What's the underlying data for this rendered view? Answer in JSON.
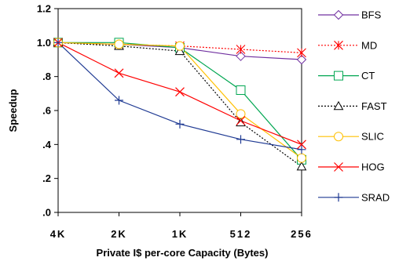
{
  "chart_data": {
    "type": "line",
    "xlabel": "Private I$ per-core Capacity (Bytes)",
    "ylabel": "Speedup",
    "categories": [
      "4K",
      "2K",
      "1K",
      "512",
      "256"
    ],
    "ylim": [
      0.0,
      1.2
    ],
    "yticks": [
      {
        "value": 0.0,
        "label": ".0"
      },
      {
        "value": 0.2,
        "label": ".2"
      },
      {
        "value": 0.4,
        "label": ".4"
      },
      {
        "value": 0.6,
        "label": ".6"
      },
      {
        "value": 0.8,
        "label": ".8"
      },
      {
        "value": 1.0,
        "label": "1.0"
      },
      {
        "value": 1.2,
        "label": "1.2"
      }
    ],
    "grid": false,
    "legend_position": "right",
    "series": [
      {
        "name": "BFS",
        "color": "#7030A0",
        "marker": "diamond",
        "dash": "solid",
        "values": [
          1.0,
          0.99,
          0.97,
          0.92,
          0.9
        ]
      },
      {
        "name": "MD",
        "color": "#FF0000",
        "marker": "asterisk",
        "dash": "dotted",
        "values": [
          1.0,
          0.99,
          0.98,
          0.96,
          0.94
        ]
      },
      {
        "name": "CT",
        "color": "#00A651",
        "marker": "square",
        "dash": "solid",
        "values": [
          1.0,
          1.0,
          0.97,
          0.72,
          0.31
        ]
      },
      {
        "name": "FAST",
        "color": "#000000",
        "marker": "triangle",
        "dash": "dotted",
        "values": [
          1.0,
          0.98,
          0.95,
          0.53,
          0.27
        ]
      },
      {
        "name": "SLIC",
        "color": "#FFC000",
        "marker": "circle",
        "dash": "solid",
        "values": [
          1.0,
          0.99,
          0.98,
          0.58,
          0.32
        ]
      },
      {
        "name": "HOG",
        "color": "#FF0000",
        "marker": "x",
        "dash": "solid",
        "values": [
          1.0,
          0.82,
          0.71,
          0.54,
          0.4
        ]
      },
      {
        "name": "SRAD",
        "color": "#1F3A93",
        "marker": "plus",
        "dash": "solid",
        "values": [
          1.0,
          0.66,
          0.52,
          0.43,
          0.37
        ]
      }
    ]
  }
}
